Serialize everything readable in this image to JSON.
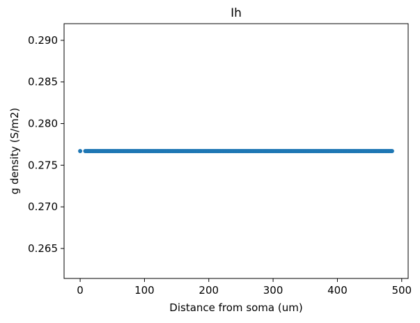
{
  "chart_data": {
    "type": "scatter",
    "title": "Ih",
    "xlabel": "Distance from soma (um)",
    "ylabel": "g density (S/m2)",
    "xlim": [
      -25,
      510
    ],
    "ylim": [
      0.2614,
      0.292
    ],
    "xticks": [
      0,
      100,
      200,
      300,
      400,
      500
    ],
    "yticks": [
      0.265,
      0.27,
      0.275,
      0.28,
      0.285,
      0.29
    ],
    "ytick_labels": [
      "0.265",
      "0.270",
      "0.275",
      "0.280",
      "0.285",
      "0.290"
    ],
    "grid": false,
    "legend": "none",
    "marker_color": "#1f77b4",
    "series": [
      {
        "x_start": 8,
        "x_end": 486,
        "x_step": 1.5,
        "y_constant": 0.2767,
        "x_extra": [
          0
        ],
        "y_extra": [
          0.2767
        ]
      }
    ]
  }
}
